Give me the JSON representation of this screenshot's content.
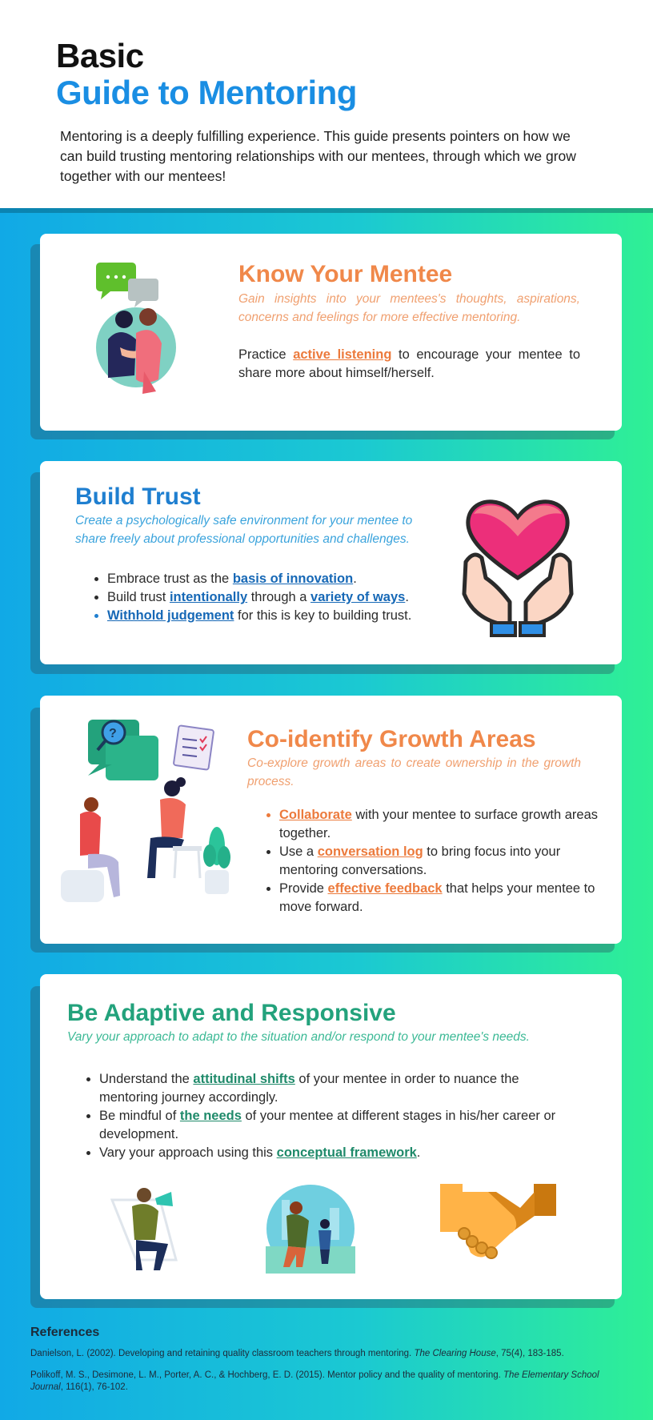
{
  "header": {
    "title_line1": "Basic",
    "title_line2": "Guide to Mentoring",
    "intro": "Mentoring is a deeply fulfilling experience. This guide presents pointers on how we can build trusting mentoring relationships with our mentees, through which we grow together with our mentees!"
  },
  "colors": {
    "accent_blue": "#1a8ee3",
    "orange": "#f0884a",
    "green": "#23a27c",
    "gradient_left": "#11a9e6",
    "gradient_right": "#2ff095"
  },
  "sections": {
    "know": {
      "title": "Know Your Mentee",
      "subtitle": "Gain insights into your mentees's thoughts, aspirations, concerns and feelings for more effective mentoring.",
      "body_pre": "Practice ",
      "link": "active listening",
      "body_post": " to encourage your mentee to share more about himself/herself."
    },
    "trust": {
      "title": "Build Trust",
      "subtitle": "Create a psychologically safe environment for your mentee to share freely about professional opportunities and challenges.",
      "b1_pre": "Embrace trust as the ",
      "b1_link": "basis of innovation",
      "b1_post": ".",
      "b2_pre": "Build trust ",
      "b2_link1": "intentionally",
      "b2_mid": " through a ",
      "b2_link2": "variety of ways",
      "b2_post": ".",
      "b3_link": "Withhold judgement",
      "b3_post": " for this is key to building trust."
    },
    "growth": {
      "title": "Co-identify Growth Areas",
      "subtitle": "Co-explore growth areas to create ownership in the growth process.",
      "b1_link": "Collaborate",
      "b1_post": " with your mentee to surface growth areas together.",
      "b2_pre": "Use a ",
      "b2_link": "conversation log",
      "b2_post": " to bring focus into your mentoring conversations.",
      "b3_pre": "Provide ",
      "b3_link": "effective feedback",
      "b3_post": " that helps your mentee to move forward."
    },
    "adaptive": {
      "title": "Be Adaptive and Responsive",
      "subtitle": "Vary your approach to adapt to the situation and/or respond to your mentee's needs.",
      "b1_pre": "Understand the ",
      "b1_link": "attitudinal shifts",
      "b1_post": " of your mentee in order to nuance the mentoring journey accordingly.",
      "b2_pre": "Be mindful of ",
      "b2_link": "the needs",
      "b2_post": " of your mentee at different stages in his/her career or development.",
      "b3_pre": "Vary your approach using this ",
      "b3_link": "conceptual framework",
      "b3_post": "."
    }
  },
  "references": {
    "heading": "References",
    "ref1_pre": "Danielson, L. (2002). Developing and retaining quality classroom teachers through mentoring. ",
    "ref1_journal": "The Clearing House",
    "ref1_post": ", 75(4), 183-185.",
    "ref2_pre": "Polikoff, M. S., Desimone, L. M., Porter, A. C., & Hochberg, E. D. (2015). Mentor policy and the quality of mentoring. ",
    "ref2_journal": "The Elementary School Journal",
    "ref2_post": ", 116(1), 76-102."
  }
}
